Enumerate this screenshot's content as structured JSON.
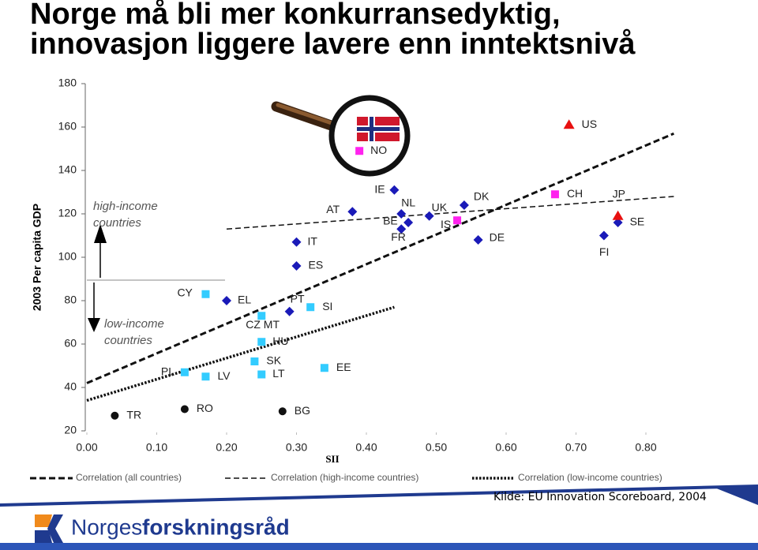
{
  "chart_data": {
    "type": "scatter",
    "title": [
      "Norge må bli mer konkurransedyktig,",
      "innovasjon liggere lavere enn inntektsnivå"
    ],
    "x_label": "SII",
    "y_label": "2003 Per capita GDP",
    "xlim": [
      0,
      0.84
    ],
    "ylim": [
      20,
      180
    ],
    "xticks": [
      {
        "value": 0,
        "label": "0.00"
      },
      {
        "value": 0.1,
        "label": "0.10"
      },
      {
        "value": 0.2,
        "label": "0.20"
      },
      {
        "value": 0.3,
        "label": "0.30"
      },
      {
        "value": 0.4,
        "label": "0.40"
      },
      {
        "value": 0.5,
        "label": "0.50"
      },
      {
        "value": 0.6,
        "label": "0.60"
      },
      {
        "value": 0.7,
        "label": "0.70"
      },
      {
        "value": 0.8,
        "label": "0.80"
      }
    ],
    "yticks": [
      20,
      40,
      60,
      80,
      100,
      120,
      140,
      160,
      180
    ],
    "grid": false,
    "series": [
      {
        "marker": "diamond",
        "color": "#1a1ab8",
        "labels": [
          "EL",
          "PT",
          "ES",
          "IT",
          "AT",
          "IE",
          "NL",
          "BE",
          "FR",
          "UK",
          "DK",
          "DE",
          "FI",
          "SE"
        ],
        "x": [
          0.2,
          0.29,
          0.3,
          0.3,
          0.38,
          0.44,
          0.45,
          0.46,
          0.45,
          0.49,
          0.54,
          0.56,
          0.74,
          0.76
        ],
        "values": [
          80,
          75,
          96,
          107,
          121,
          131,
          120,
          116,
          113,
          119,
          124,
          108,
          110,
          116
        ]
      },
      {
        "marker": "square",
        "color": "#33ccff",
        "labels": [
          "PL",
          "LV",
          "LT",
          "SK",
          "EE",
          "HU",
          "CZ MT",
          "CY",
          "SI"
        ],
        "x": [
          0.14,
          0.17,
          0.25,
          0.24,
          0.34,
          0.25,
          0.25,
          0.17,
          0.32
        ],
        "values": [
          47,
          45,
          46,
          52,
          49,
          61,
          73,
          83,
          77
        ]
      },
      {
        "marker": "circle",
        "color": "#111111",
        "labels": [
          "TR",
          "RO",
          "BG"
        ],
        "x": [
          0.04,
          0.14,
          0.28
        ],
        "values": [
          27,
          30,
          29
        ]
      },
      {
        "marker": "square",
        "color": "#ff22ee",
        "labels": [
          "IS",
          "CH",
          "NO"
        ],
        "x": [
          0.53,
          0.67,
          0.39
        ],
        "values": [
          117,
          129,
          149
        ]
      },
      {
        "marker": "triangle",
        "color": "#e81010",
        "labels": [
          "US",
          "JP"
        ],
        "x": [
          0.69,
          0.76
        ],
        "values": [
          161,
          119
        ]
      }
    ],
    "lines": [
      {
        "name": "Correlation (all countries)",
        "style": "dashed-thick",
        "x": [
          0,
          0.84
        ],
        "values": [
          42,
          157
        ]
      },
      {
        "name": "Correlation (high-income countries)",
        "style": "dashed",
        "x": [
          0.2,
          0.84
        ],
        "values": [
          113,
          128
        ]
      },
      {
        "name": "Correlation (low-income countries)",
        "style": "dotted",
        "x": [
          0,
          0.44
        ],
        "values": [
          34,
          77
        ]
      }
    ],
    "annotations": [
      "high-income",
      "countries",
      "low-income",
      "countries"
    ]
  },
  "footer": {
    "source": "Kilde: EU Innovation Scoreboard, 2004",
    "logo": [
      "Norges",
      "forskningsråd"
    ]
  }
}
